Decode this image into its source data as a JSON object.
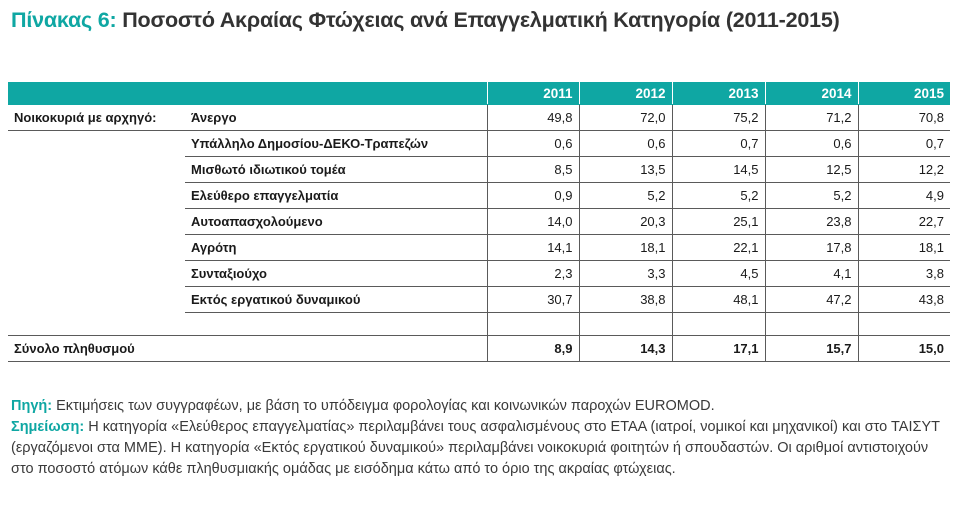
{
  "title": {
    "label": "Πίνακας 6:",
    "text": "Ποσοστό Ακραίας Φτώχειας ανά Επαγγελματική Κατηγορία (2011-2015)"
  },
  "table": {
    "years": [
      "2011",
      "2012",
      "2013",
      "2014",
      "2015"
    ],
    "group_label": "Νοικοκυριά με αρχηγό:",
    "rows": [
      {
        "label": "Άνεργο",
        "values": [
          "49,8",
          "72,0",
          "75,2",
          "71,2",
          "70,8"
        ]
      },
      {
        "label": "Υπάλληλο Δημοσίου-ΔΕΚΟ-Τραπεζών",
        "values": [
          "0,6",
          "0,6",
          "0,7",
          "0,6",
          "0,7"
        ]
      },
      {
        "label": "Μισθωτό ιδιωτικού τομέα",
        "values": [
          "8,5",
          "13,5",
          "14,5",
          "12,5",
          "12,2"
        ]
      },
      {
        "label": "Ελεύθερο επαγγελματία",
        "values": [
          "0,9",
          "5,2",
          "5,2",
          "5,2",
          "4,9"
        ]
      },
      {
        "label": "Αυτοαπασχολούμενο",
        "values": [
          "14,0",
          "20,3",
          "25,1",
          "23,8",
          "22,7"
        ]
      },
      {
        "label": "Αγρότη",
        "values": [
          "14,1",
          "18,1",
          "22,1",
          "17,8",
          "18,1"
        ]
      },
      {
        "label": "Συνταξιούχο",
        "values": [
          "2,3",
          "3,3",
          "4,5",
          "4,1",
          "3,8"
        ]
      },
      {
        "label": "Εκτός εργατικού δυναμικού",
        "values": [
          "30,7",
          "38,8",
          "48,1",
          "47,2",
          "43,8"
        ]
      }
    ],
    "total": {
      "label": "Σύνολο πληθυσμού",
      "values": [
        "8,9",
        "14,3",
        "17,1",
        "15,7",
        "15,0"
      ]
    }
  },
  "notes": {
    "source_label": "Πηγή:",
    "source_text": " Εκτιμήσεις των συγγραφέων, με βάση το υπόδειγμα φορολογίας και κοινωνικών παροχών EUROMOD.",
    "note_label": "Σημείωση:",
    "note_text": " Η κατηγορία «Ελεύθερος επαγγελματίας» περιλαμβάνει τους ασφαλισμένους στο ΕΤΑΑ (ιατροί, νομικοί και μηχανικοί) και στο ΤΑΙΣΥΤ (εργαζόμενοι στα ΜΜΕ). Η κατηγορία «Εκτός εργατικού δυναμικού» περιλαμβάνει νοικοκυριά φοιτητών ή σπουδαστών. Οι αριθμοί αντιστοιχούν στο ποσοστό ατόμων κάθε πληθυσμιακής ομάδας με εισόδημα κάτω από το όριο της ακραίας φτώχειας."
  }
}
